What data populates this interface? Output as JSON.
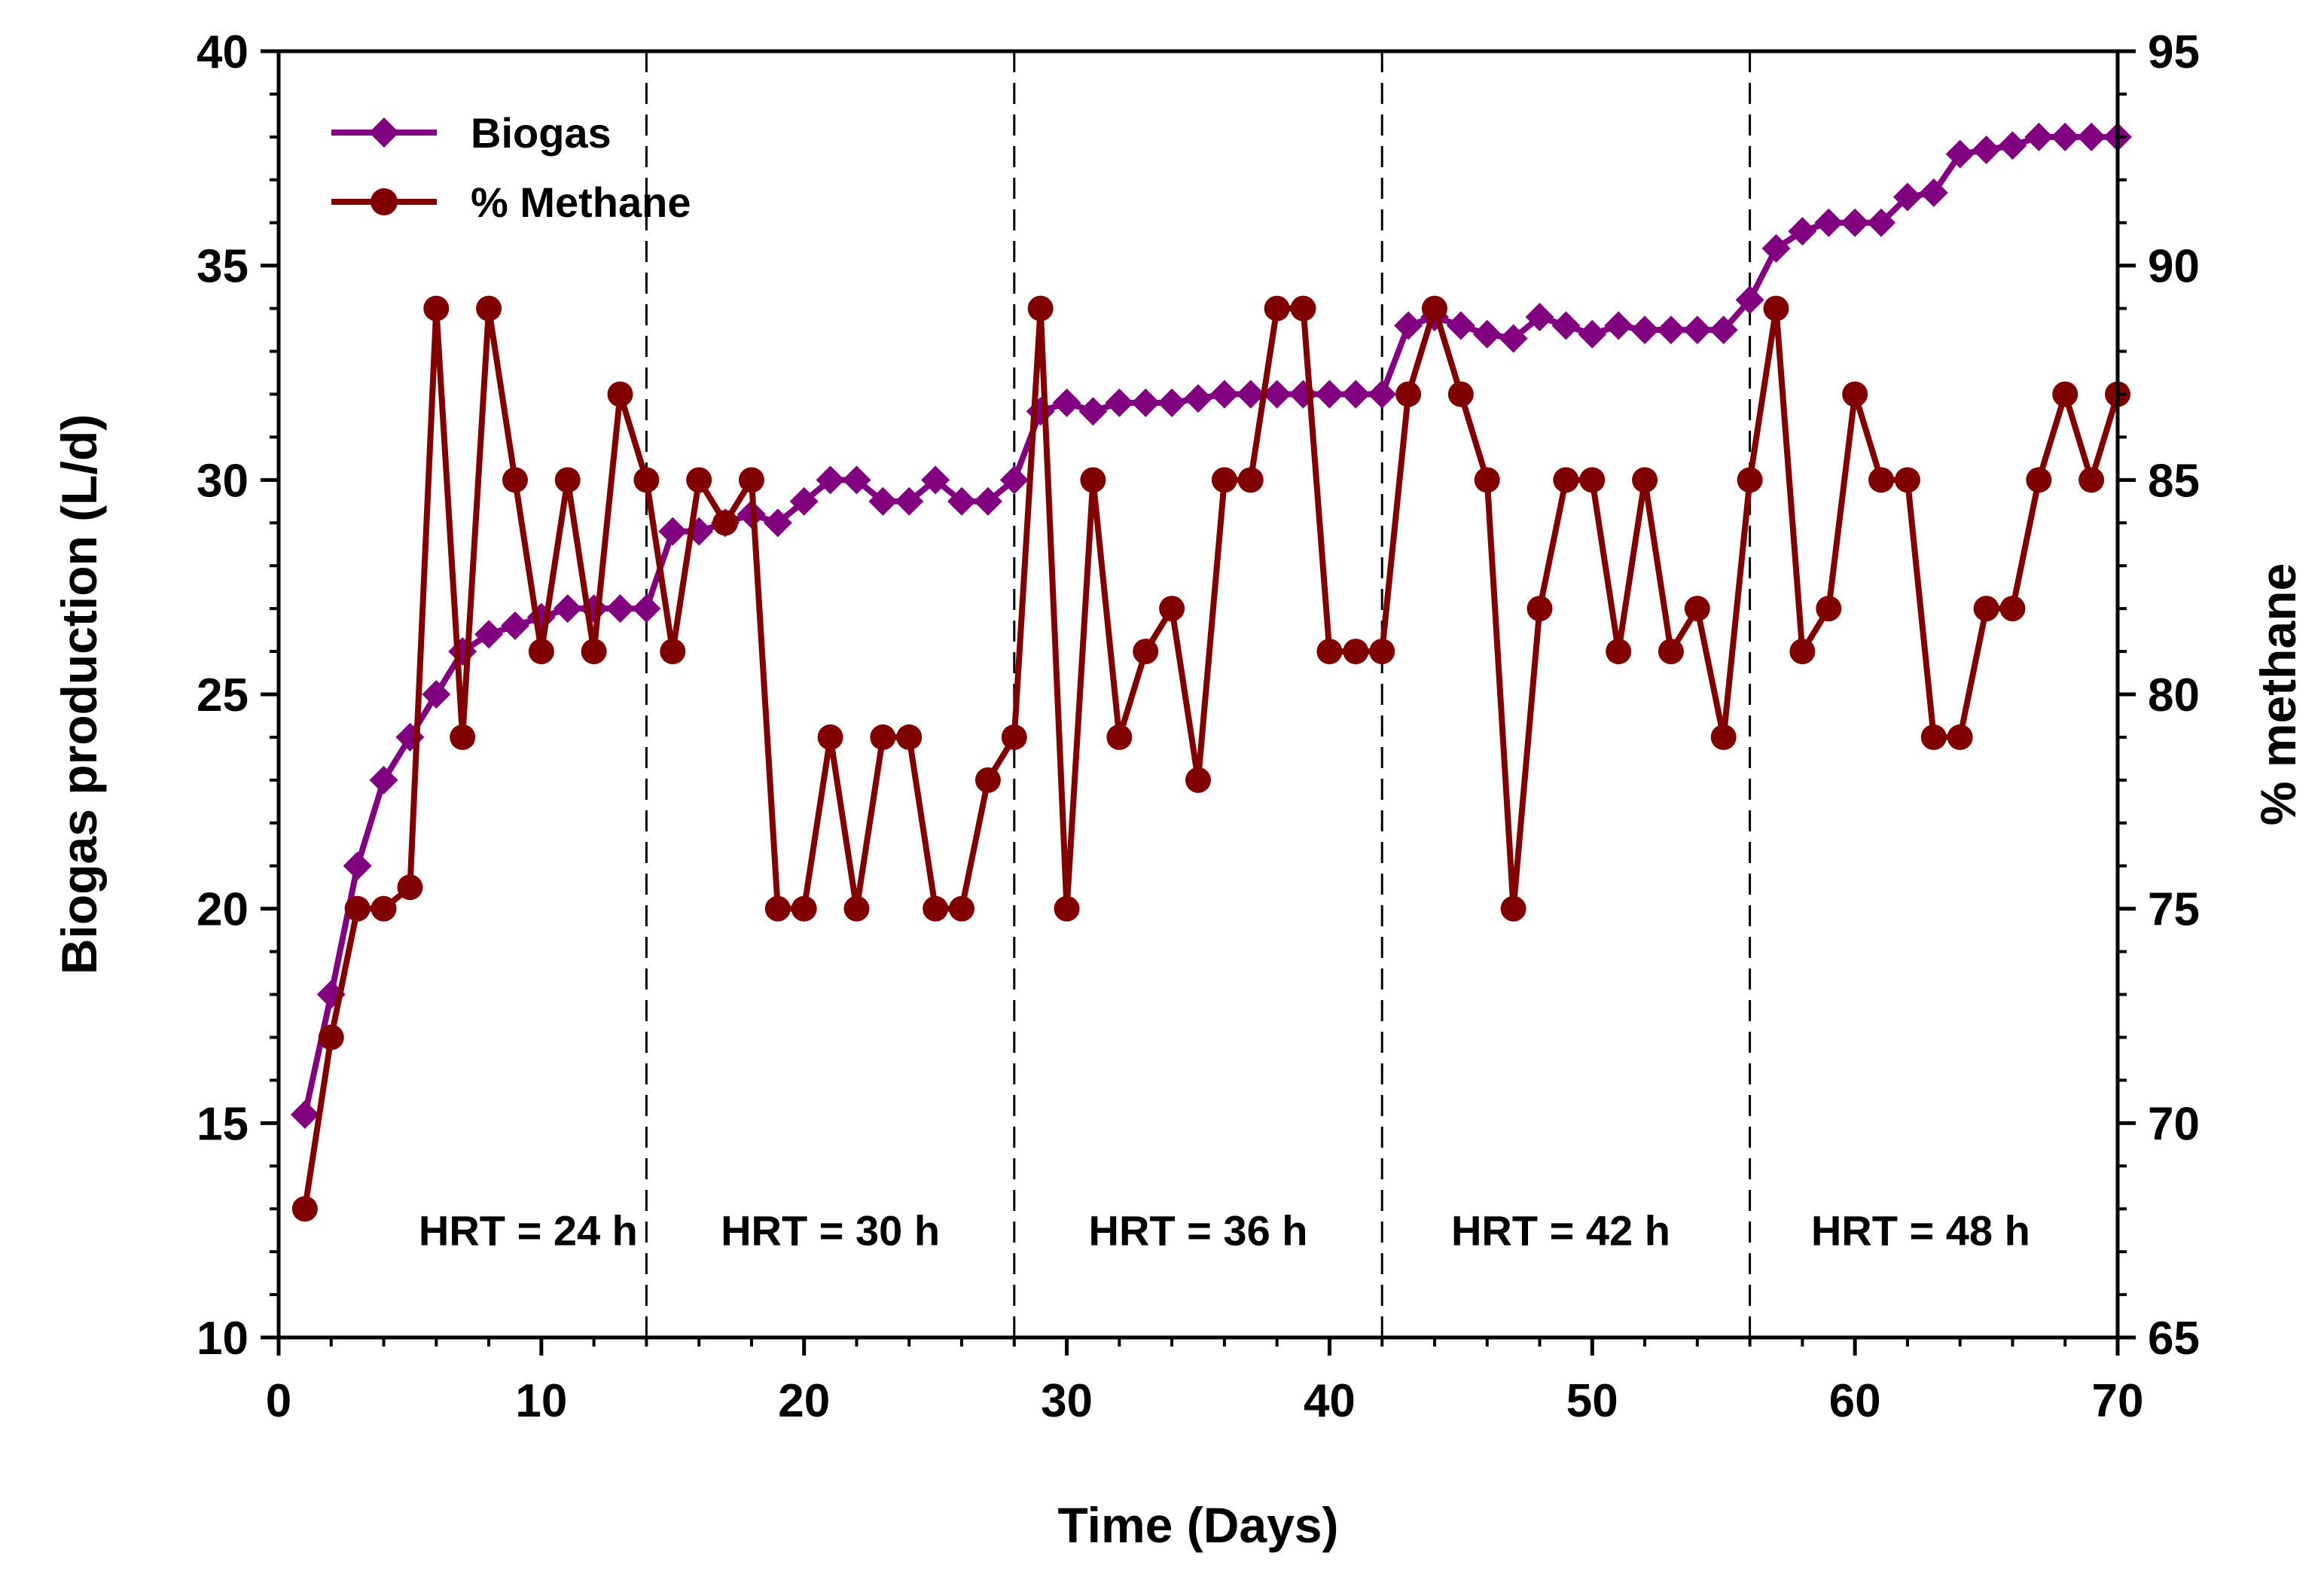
{
  "chart_data": {
    "type": "line",
    "xlabel": "Time (Days)",
    "ylabel_left": "Biogas production (L/d)",
    "ylabel_right": "% methane",
    "xlim": [
      0,
      70
    ],
    "ylim_left": [
      10,
      40
    ],
    "ylim_right": [
      65,
      95
    ],
    "x_ticks": [
      0,
      10,
      20,
      30,
      40,
      50,
      60,
      70
    ],
    "y_left_ticks": [
      10,
      15,
      20,
      25,
      30,
      35,
      40
    ],
    "y_right_ticks": [
      65,
      70,
      75,
      80,
      85,
      90,
      95
    ],
    "phase_boundaries": [
      14,
      28,
      42,
      56
    ],
    "phase_labels": [
      {
        "text": "HRT = 24 h",
        "x": 9.5,
        "y": 12.5
      },
      {
        "text": "HRT = 30 h",
        "x": 21.0,
        "y": 12.5
      },
      {
        "text": "HRT = 36 h",
        "x": 35.0,
        "y": 12.5
      },
      {
        "text": "HRT = 42 h",
        "x": 48.8,
        "y": 12.5
      },
      {
        "text": "HRT = 48 h",
        "x": 62.5,
        "y": 12.5
      }
    ],
    "legend": [
      {
        "label": "Biogas",
        "marker": "diamond",
        "color": "#800080"
      },
      {
        "label": "% Methane",
        "marker": "circle",
        "color": "#800000"
      }
    ],
    "series": [
      {
        "name": "Biogas",
        "axis": "left",
        "color": "#800080",
        "marker": "diamond",
        "x": [
          1,
          2,
          3,
          4,
          5,
          6,
          7,
          8,
          9,
          10,
          11,
          12,
          13,
          14,
          15,
          16,
          17,
          18,
          19,
          20,
          21,
          22,
          23,
          24,
          25,
          26,
          27,
          28,
          29,
          30,
          31,
          32,
          33,
          34,
          35,
          36,
          37,
          38,
          39,
          40,
          41,
          42,
          43,
          44,
          45,
          46,
          47,
          48,
          49,
          50,
          51,
          52,
          53,
          54,
          55,
          56,
          57,
          58,
          59,
          60,
          61,
          62,
          63,
          64,
          65,
          66,
          67,
          68,
          69,
          70
        ],
        "values": [
          15.2,
          18,
          21,
          23,
          24,
          25,
          26,
          26.4,
          26.6,
          26.8,
          27,
          27,
          27,
          27,
          28.8,
          28.8,
          29,
          29.2,
          29,
          29.5,
          30,
          30,
          29.5,
          29.5,
          30,
          29.5,
          29.5,
          30,
          31.6,
          31.8,
          31.6,
          31.8,
          31.8,
          31.8,
          31.9,
          32,
          32,
          32,
          32,
          32,
          32,
          32,
          33.6,
          33.8,
          33.6,
          33.4,
          33.3,
          33.8,
          33.6,
          33.4,
          33.6,
          33.5,
          33.5,
          33.5,
          33.5,
          34.2,
          35.4,
          35.8,
          36,
          36,
          36,
          36.6,
          36.7,
          37.6,
          37.7,
          37.8,
          38,
          38,
          38,
          38
        ]
      },
      {
        "name": "% Methane",
        "axis": "right",
        "color": "#800000",
        "marker": "circle",
        "x": [
          1,
          2,
          3,
          4,
          5,
          6,
          7,
          8,
          9,
          10,
          11,
          12,
          13,
          14,
          15,
          16,
          17,
          18,
          19,
          20,
          21,
          22,
          23,
          24,
          25,
          26,
          27,
          28,
          29,
          30,
          31,
          32,
          33,
          34,
          35,
          36,
          37,
          38,
          39,
          40,
          41,
          42,
          43,
          44,
          45,
          46,
          47,
          48,
          49,
          50,
          51,
          52,
          53,
          54,
          55,
          56,
          57,
          58,
          59,
          60,
          61,
          62,
          63,
          64,
          65,
          66,
          67,
          68,
          69,
          70
        ],
        "values": [
          68,
          72,
          75,
          75,
          75.5,
          89,
          79,
          89,
          85,
          81,
          85,
          81,
          87,
          85,
          81,
          85,
          84,
          85,
          75,
          75,
          79,
          75,
          79,
          79,
          75,
          75,
          78,
          79,
          89,
          75,
          85,
          79,
          81,
          82,
          78,
          85,
          85,
          89,
          89,
          81,
          81,
          81,
          87,
          89,
          87,
          85,
          75,
          82,
          85,
          85,
          81,
          85,
          81,
          82,
          79,
          85,
          89,
          81,
          82,
          87,
          85,
          85,
          79,
          79,
          82,
          82,
          85,
          87,
          85,
          87
        ]
      }
    ]
  }
}
